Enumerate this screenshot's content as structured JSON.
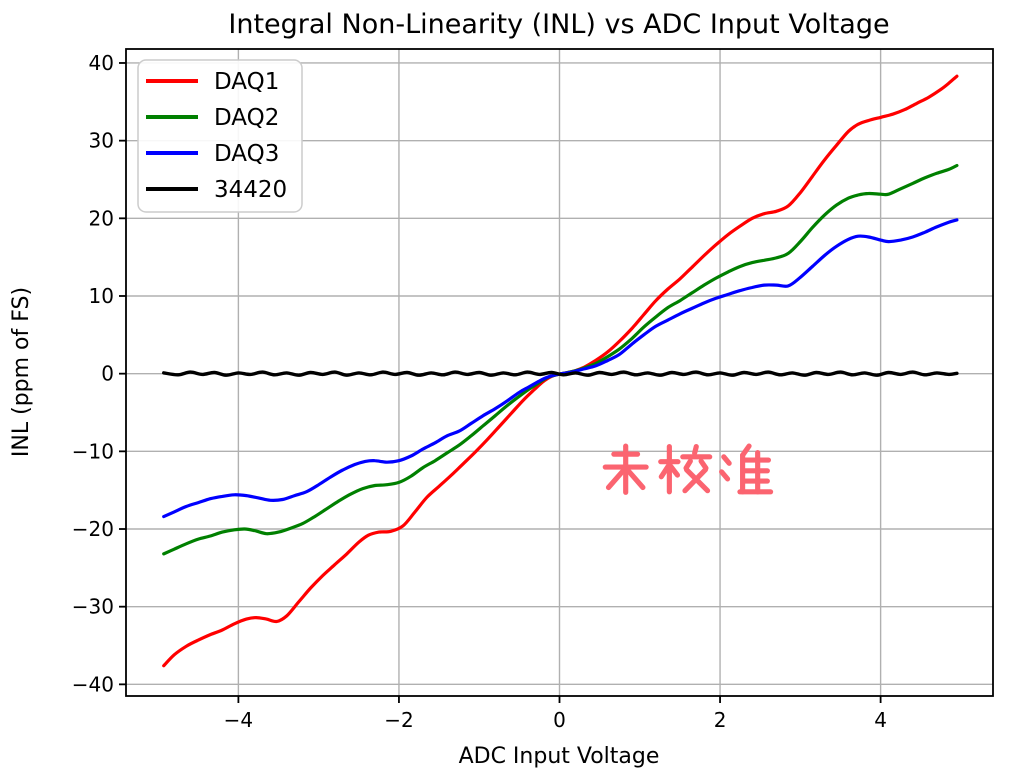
{
  "chart_data": {
    "type": "line",
    "title": "Integral Non-Linearity (INL) vs ADC Input Voltage",
    "xlabel": "ADC Input Voltage",
    "ylabel": "INL (ppm of FS)",
    "xlim": [
      -5.4,
      5.4
    ],
    "ylim": [
      -41.5,
      41.8
    ],
    "grid": true,
    "legend_position": "upper left",
    "frame_color": "#000000",
    "grid_color": "#b0b0b0",
    "xticks": [
      {
        "value": -4,
        "label": "−4"
      },
      {
        "value": -2,
        "label": "−2"
      },
      {
        "value": 0,
        "label": "0"
      },
      {
        "value": 2,
        "label": "2"
      },
      {
        "value": 4,
        "label": "4"
      }
    ],
    "yticks": [
      {
        "value": -40,
        "label": "−40"
      },
      {
        "value": -30,
        "label": "−30"
      },
      {
        "value": -20,
        "label": "−20"
      },
      {
        "value": -10,
        "label": "−10"
      },
      {
        "value": 0,
        "label": "0"
      },
      {
        "value": 10,
        "label": "10"
      },
      {
        "value": 20,
        "label": "20"
      },
      {
        "value": 30,
        "label": "30"
      },
      {
        "value": 40,
        "label": "40"
      }
    ],
    "annotation": {
      "text": "未校准",
      "x": 1.57,
      "y": -12.3,
      "color": "#fb6470",
      "font_size": 46
    },
    "series": [
      {
        "name": "DAQ1",
        "color": "#ff0000",
        "width": 3.2,
        "points": [
          [
            -4.93,
            -37.6
          ],
          [
            -4.8,
            -36.2
          ],
          [
            -4.65,
            -35.1
          ],
          [
            -4.5,
            -34.3
          ],
          [
            -4.35,
            -33.6
          ],
          [
            -4.2,
            -33.0
          ],
          [
            -4.05,
            -32.2
          ],
          [
            -3.9,
            -31.6
          ],
          [
            -3.78,
            -31.4
          ],
          [
            -3.65,
            -31.6
          ],
          [
            -3.52,
            -31.9
          ],
          [
            -3.4,
            -31.2
          ],
          [
            -3.25,
            -29.4
          ],
          [
            -3.1,
            -27.6
          ],
          [
            -2.95,
            -26.0
          ],
          [
            -2.8,
            -24.6
          ],
          [
            -2.65,
            -23.2
          ],
          [
            -2.5,
            -21.7
          ],
          [
            -2.38,
            -20.8
          ],
          [
            -2.25,
            -20.4
          ],
          [
            -2.1,
            -20.3
          ],
          [
            -1.95,
            -19.6
          ],
          [
            -1.8,
            -17.8
          ],
          [
            -1.65,
            -15.9
          ],
          [
            -1.5,
            -14.5
          ],
          [
            -1.35,
            -13.1
          ],
          [
            -1.2,
            -11.6
          ],
          [
            -1.05,
            -10.1
          ],
          [
            -0.9,
            -8.5
          ],
          [
            -0.75,
            -6.8
          ],
          [
            -0.6,
            -5.1
          ],
          [
            -0.45,
            -3.4
          ],
          [
            -0.32,
            -2.1
          ],
          [
            -0.2,
            -1.0
          ],
          [
            -0.1,
            -0.35
          ],
          [
            0,
            -0.05
          ],
          [
            0.1,
            0.15
          ],
          [
            0.2,
            0.4
          ],
          [
            0.3,
            0.8
          ],
          [
            0.45,
            1.7
          ],
          [
            0.6,
            2.8
          ],
          [
            0.75,
            4.2
          ],
          [
            0.9,
            5.8
          ],
          [
            1.05,
            7.6
          ],
          [
            1.2,
            9.4
          ],
          [
            1.35,
            10.9
          ],
          [
            1.5,
            12.2
          ],
          [
            1.65,
            13.7
          ],
          [
            1.8,
            15.2
          ],
          [
            1.95,
            16.6
          ],
          [
            2.1,
            17.9
          ],
          [
            2.25,
            19.0
          ],
          [
            2.4,
            20.0
          ],
          [
            2.55,
            20.6
          ],
          [
            2.7,
            20.9
          ],
          [
            2.85,
            21.6
          ],
          [
            3.0,
            23.3
          ],
          [
            3.15,
            25.4
          ],
          [
            3.3,
            27.5
          ],
          [
            3.45,
            29.4
          ],
          [
            3.6,
            31.2
          ],
          [
            3.72,
            32.1
          ],
          [
            3.85,
            32.6
          ],
          [
            4.0,
            33.0
          ],
          [
            4.15,
            33.4
          ],
          [
            4.3,
            34.0
          ],
          [
            4.45,
            34.8
          ],
          [
            4.6,
            35.6
          ],
          [
            4.75,
            36.6
          ],
          [
            4.85,
            37.4
          ],
          [
            4.95,
            38.3
          ]
        ]
      },
      {
        "name": "DAQ2",
        "color": "#008000",
        "width": 3.2,
        "points": [
          [
            -4.93,
            -23.2
          ],
          [
            -4.8,
            -22.6
          ],
          [
            -4.65,
            -21.9
          ],
          [
            -4.5,
            -21.3
          ],
          [
            -4.35,
            -20.9
          ],
          [
            -4.2,
            -20.4
          ],
          [
            -4.05,
            -20.1
          ],
          [
            -3.92,
            -20.0
          ],
          [
            -3.8,
            -20.2
          ],
          [
            -3.65,
            -20.6
          ],
          [
            -3.5,
            -20.4
          ],
          [
            -3.35,
            -19.9
          ],
          [
            -3.2,
            -19.3
          ],
          [
            -3.05,
            -18.4
          ],
          [
            -2.9,
            -17.4
          ],
          [
            -2.75,
            -16.4
          ],
          [
            -2.6,
            -15.5
          ],
          [
            -2.45,
            -14.8
          ],
          [
            -2.3,
            -14.4
          ],
          [
            -2.15,
            -14.3
          ],
          [
            -2.0,
            -14.0
          ],
          [
            -1.85,
            -13.2
          ],
          [
            -1.7,
            -12.1
          ],
          [
            -1.55,
            -11.2
          ],
          [
            -1.4,
            -10.2
          ],
          [
            -1.25,
            -9.2
          ],
          [
            -1.1,
            -8.0
          ],
          [
            -0.95,
            -6.7
          ],
          [
            -0.8,
            -5.4
          ],
          [
            -0.65,
            -4.1
          ],
          [
            -0.5,
            -2.9
          ],
          [
            -0.38,
            -2.0
          ],
          [
            -0.26,
            -1.2
          ],
          [
            -0.15,
            -0.5
          ],
          [
            0,
            -0.05
          ],
          [
            0.15,
            0.25
          ],
          [
            0.3,
            0.7
          ],
          [
            0.45,
            1.3
          ],
          [
            0.6,
            2.2
          ],
          [
            0.75,
            3.2
          ],
          [
            0.9,
            4.5
          ],
          [
            1.05,
            6.0
          ],
          [
            1.2,
            7.3
          ],
          [
            1.35,
            8.5
          ],
          [
            1.5,
            9.4
          ],
          [
            1.65,
            10.4
          ],
          [
            1.8,
            11.4
          ],
          [
            1.95,
            12.3
          ],
          [
            2.1,
            13.1
          ],
          [
            2.25,
            13.8
          ],
          [
            2.4,
            14.3
          ],
          [
            2.55,
            14.6
          ],
          [
            2.7,
            14.9
          ],
          [
            2.85,
            15.5
          ],
          [
            3.0,
            17.0
          ],
          [
            3.15,
            18.8
          ],
          [
            3.3,
            20.4
          ],
          [
            3.45,
            21.7
          ],
          [
            3.6,
            22.6
          ],
          [
            3.72,
            23.0
          ],
          [
            3.85,
            23.2
          ],
          [
            4.0,
            23.1
          ],
          [
            4.1,
            23.1
          ],
          [
            4.25,
            23.8
          ],
          [
            4.4,
            24.5
          ],
          [
            4.55,
            25.2
          ],
          [
            4.7,
            25.8
          ],
          [
            4.85,
            26.3
          ],
          [
            4.95,
            26.8
          ]
        ]
      },
      {
        "name": "DAQ3",
        "color": "#0000ff",
        "width": 3.2,
        "points": [
          [
            -4.93,
            -18.4
          ],
          [
            -4.8,
            -17.8
          ],
          [
            -4.65,
            -17.1
          ],
          [
            -4.5,
            -16.6
          ],
          [
            -4.35,
            -16.1
          ],
          [
            -4.2,
            -15.8
          ],
          [
            -4.05,
            -15.6
          ],
          [
            -3.9,
            -15.7
          ],
          [
            -3.75,
            -16.0
          ],
          [
            -3.6,
            -16.3
          ],
          [
            -3.45,
            -16.2
          ],
          [
            -3.3,
            -15.7
          ],
          [
            -3.15,
            -15.2
          ],
          [
            -3.0,
            -14.3
          ],
          [
            -2.85,
            -13.3
          ],
          [
            -2.7,
            -12.4
          ],
          [
            -2.55,
            -11.7
          ],
          [
            -2.42,
            -11.3
          ],
          [
            -2.3,
            -11.2
          ],
          [
            -2.15,
            -11.4
          ],
          [
            -2.0,
            -11.2
          ],
          [
            -1.85,
            -10.6
          ],
          [
            -1.7,
            -9.7
          ],
          [
            -1.55,
            -8.9
          ],
          [
            -1.4,
            -8.0
          ],
          [
            -1.25,
            -7.4
          ],
          [
            -1.1,
            -6.4
          ],
          [
            -0.95,
            -5.4
          ],
          [
            -0.8,
            -4.5
          ],
          [
            -0.65,
            -3.5
          ],
          [
            -0.5,
            -2.4
          ],
          [
            -0.38,
            -1.7
          ],
          [
            -0.26,
            -1.0
          ],
          [
            -0.15,
            -0.45
          ],
          [
            0,
            -0.05
          ],
          [
            0.15,
            0.2
          ],
          [
            0.3,
            0.6
          ],
          [
            0.45,
            1.0
          ],
          [
            0.6,
            1.7
          ],
          [
            0.75,
            2.5
          ],
          [
            0.9,
            3.8
          ],
          [
            1.05,
            5.0
          ],
          [
            1.2,
            6.1
          ],
          [
            1.35,
            6.9
          ],
          [
            1.5,
            7.7
          ],
          [
            1.65,
            8.4
          ],
          [
            1.8,
            9.1
          ],
          [
            1.95,
            9.7
          ],
          [
            2.1,
            10.2
          ],
          [
            2.25,
            10.7
          ],
          [
            2.4,
            11.1
          ],
          [
            2.55,
            11.4
          ],
          [
            2.7,
            11.4
          ],
          [
            2.85,
            11.3
          ],
          [
            3.0,
            12.4
          ],
          [
            3.15,
            13.8
          ],
          [
            3.3,
            15.2
          ],
          [
            3.45,
            16.4
          ],
          [
            3.6,
            17.3
          ],
          [
            3.72,
            17.7
          ],
          [
            3.85,
            17.6
          ],
          [
            4.0,
            17.2
          ],
          [
            4.1,
            17.0
          ],
          [
            4.25,
            17.2
          ],
          [
            4.4,
            17.6
          ],
          [
            4.55,
            18.2
          ],
          [
            4.7,
            18.9
          ],
          [
            4.85,
            19.5
          ],
          [
            4.95,
            19.8
          ]
        ]
      },
      {
        "name": "34420",
        "color": "#000000",
        "width": 3.4,
        "points": [
          [
            -4.93,
            0.1
          ],
          [
            -4.75,
            -0.15
          ],
          [
            -4.6,
            0.2
          ],
          [
            -4.45,
            -0.1
          ],
          [
            -4.3,
            0.15
          ],
          [
            -4.15,
            -0.2
          ],
          [
            -4.0,
            0.1
          ],
          [
            -3.85,
            -0.1
          ],
          [
            -3.7,
            0.2
          ],
          [
            -3.55,
            -0.15
          ],
          [
            -3.4,
            0.1
          ],
          [
            -3.25,
            -0.2
          ],
          [
            -3.1,
            0.15
          ],
          [
            -2.95,
            -0.1
          ],
          [
            -2.8,
            0.2
          ],
          [
            -2.65,
            -0.2
          ],
          [
            -2.5,
            0.1
          ],
          [
            -2.35,
            -0.15
          ],
          [
            -2.2,
            0.2
          ],
          [
            -2.05,
            -0.1
          ],
          [
            -1.9,
            0.15
          ],
          [
            -1.75,
            -0.2
          ],
          [
            -1.6,
            0.1
          ],
          [
            -1.45,
            -0.15
          ],
          [
            -1.3,
            0.2
          ],
          [
            -1.15,
            -0.1
          ],
          [
            -1.0,
            0.15
          ],
          [
            -0.85,
            -0.2
          ],
          [
            -0.7,
            0.1
          ],
          [
            -0.55,
            -0.15
          ],
          [
            -0.4,
            0.2
          ],
          [
            -0.25,
            -0.1
          ],
          [
            -0.1,
            0.15
          ],
          [
            0.05,
            -0.15
          ],
          [
            0.2,
            0.1
          ],
          [
            0.35,
            -0.2
          ],
          [
            0.5,
            0.15
          ],
          [
            0.65,
            -0.1
          ],
          [
            0.8,
            0.2
          ],
          [
            0.95,
            -0.15
          ],
          [
            1.1,
            0.1
          ],
          [
            1.25,
            -0.2
          ],
          [
            1.4,
            0.15
          ],
          [
            1.55,
            -0.1
          ],
          [
            1.7,
            0.2
          ],
          [
            1.85,
            -0.15
          ],
          [
            2.0,
            0.1
          ],
          [
            2.15,
            -0.2
          ],
          [
            2.3,
            0.15
          ],
          [
            2.45,
            -0.1
          ],
          [
            2.6,
            0.2
          ],
          [
            2.75,
            -0.15
          ],
          [
            2.9,
            0.1
          ],
          [
            3.05,
            -0.2
          ],
          [
            3.2,
            0.15
          ],
          [
            3.35,
            -0.1
          ],
          [
            3.5,
            0.2
          ],
          [
            3.65,
            -0.15
          ],
          [
            3.8,
            0.1
          ],
          [
            3.95,
            -0.2
          ],
          [
            4.1,
            0.15
          ],
          [
            4.25,
            -0.1
          ],
          [
            4.4,
            0.2
          ],
          [
            4.55,
            -0.15
          ],
          [
            4.7,
            0.1
          ],
          [
            4.85,
            -0.1
          ],
          [
            4.95,
            0.05
          ]
        ]
      }
    ]
  }
}
